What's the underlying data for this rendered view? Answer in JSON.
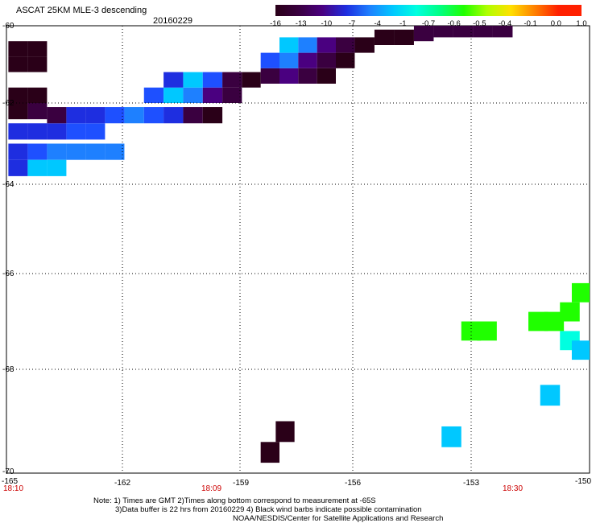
{
  "header": {
    "title": "ASCAT 25KM MLE-3 descending",
    "date": "20160229"
  },
  "colorbar": {
    "labels": [
      "-16",
      "-13",
      "-10",
      "-7",
      "-4",
      "-1",
      "-0.7",
      "-0.6",
      "-0.5",
      "-0.4",
      "-0.1",
      "0.0",
      "1.0"
    ],
    "colors": [
      "#2a0018",
      "#3a0040",
      "#4a0080",
      "#1e2ee0",
      "#1e80ff",
      "#00c8ff",
      "#00ffe0",
      "#00ff80",
      "#20ff00",
      "#b0ff00",
      "#ffe000",
      "#ff8000",
      "#ff2000"
    ]
  },
  "axes": {
    "lat_labels": [
      "-60",
      "-62",
      "-64",
      "-66",
      "-68",
      "-70"
    ],
    "lon_labels": [
      "-165",
      "-162",
      "-159",
      "-156",
      "-153",
      "-150"
    ],
    "time_labels": [
      "18:10",
      "18:09",
      "18:30"
    ]
  },
  "notes": {
    "line1": "Note: 1) Times are GMT 2)Times along bottom correspond to measurement at -65S",
    "line2": "3)Data buffer is 22 hrs from 20160229 4) Black wind barbs indicate possible contamination",
    "line3": "NOAA/NESDIS/Center for Satellite Applications and Research"
  },
  "map_data": {
    "type": "swath-grid",
    "lon_range": [
      -165,
      -150
    ],
    "lat_range": [
      -70,
      -60
    ],
    "cells": [
      [
        -164.7,
        -60.6,
        "#2a0018"
      ],
      [
        -164.2,
        -60.6,
        "#2a0018"
      ],
      [
        -164.7,
        -61.0,
        "#2a0018"
      ],
      [
        -164.2,
        -61.0,
        "#2a0018"
      ],
      [
        -164.7,
        -61.8,
        "#2a0018"
      ],
      [
        -164.2,
        -61.8,
        "#2a0018"
      ],
      [
        -164.7,
        -62.2,
        "#2a0018"
      ],
      [
        -164.2,
        -62.2,
        "#3a0040"
      ],
      [
        -164.7,
        -62.7,
        "#1e2ee0"
      ],
      [
        -164.2,
        -62.7,
        "#1e2ee0"
      ],
      [
        -163.7,
        -62.7,
        "#1e2ee0"
      ],
      [
        -163.2,
        -62.7,
        "#1e50ff"
      ],
      [
        -162.7,
        -62.7,
        "#1e50ff"
      ],
      [
        -164.7,
        -63.2,
        "#1e2ee0"
      ],
      [
        -164.2,
        -63.2,
        "#1e50ff"
      ],
      [
        -163.7,
        -63.2,
        "#1e80ff"
      ],
      [
        -163.2,
        -63.2,
        "#1e80ff"
      ],
      [
        -162.7,
        -63.2,
        "#1e80ff"
      ],
      [
        -162.2,
        -63.2,
        "#1e80ff"
      ],
      [
        -164.7,
        -63.6,
        "#1e2ee0"
      ],
      [
        -164.2,
        -63.6,
        "#00c8ff"
      ],
      [
        -163.7,
        -63.6,
        "#00c8ff"
      ],
      [
        -163.7,
        -62.3,
        "#3a0040"
      ],
      [
        -163.2,
        -62.3,
        "#1e2ee0"
      ],
      [
        -162.7,
        -62.3,
        "#1e2ee0"
      ],
      [
        -162.2,
        -62.3,
        "#1e50ff"
      ],
      [
        -161.7,
        -62.3,
        "#1e80ff"
      ],
      [
        -161.2,
        -62.3,
        "#1e50ff"
      ],
      [
        -160.7,
        -62.3,
        "#1e2ee0"
      ],
      [
        -160.2,
        -62.3,
        "#3a0040"
      ],
      [
        -159.7,
        -62.3,
        "#2a0018"
      ],
      [
        -161.2,
        -61.8,
        "#1e50ff"
      ],
      [
        -160.7,
        -61.8,
        "#00c8ff"
      ],
      [
        -160.2,
        -61.8,
        "#1e80ff"
      ],
      [
        -159.7,
        -61.8,
        "#4a0080"
      ],
      [
        -159.2,
        -61.8,
        "#3a0040"
      ],
      [
        -160.7,
        -61.4,
        "#1e2ee0"
      ],
      [
        -160.2,
        -61.4,
        "#00c8ff"
      ],
      [
        -159.7,
        -61.4,
        "#1e50ff"
      ],
      [
        -159.2,
        -61.4,
        "#3a0040"
      ],
      [
        -158.7,
        -61.4,
        "#2a0018"
      ],
      [
        -158.2,
        -61.3,
        "#3a0040"
      ],
      [
        -157.7,
        -61.3,
        "#4a0080"
      ],
      [
        -157.2,
        -61.3,
        "#3a0040"
      ],
      [
        -156.7,
        -61.3,
        "#2a0018"
      ],
      [
        -158.2,
        -60.9,
        "#1e50ff"
      ],
      [
        -157.7,
        -60.9,
        "#1e80ff"
      ],
      [
        -157.2,
        -60.9,
        "#4a0080"
      ],
      [
        -156.7,
        -60.9,
        "#3a0040"
      ],
      [
        -156.2,
        -60.9,
        "#2a0018"
      ],
      [
        -157.7,
        -60.5,
        "#00c8ff"
      ],
      [
        -157.2,
        -60.5,
        "#1e80ff"
      ],
      [
        -156.7,
        -60.5,
        "#4a0080"
      ],
      [
        -156.2,
        -60.5,
        "#3a0040"
      ],
      [
        -155.7,
        -60.5,
        "#2a0018"
      ],
      [
        -155.2,
        -60.3,
        "#2a0018"
      ],
      [
        -154.7,
        -60.3,
        "#2a0018"
      ],
      [
        -154.2,
        -60.2,
        "#3a0040"
      ],
      [
        -153.7,
        -60.1,
        "#3a0040"
      ],
      [
        -153.2,
        -60.1,
        "#3a0040"
      ],
      [
        -152.7,
        -60.1,
        "#3a0040"
      ],
      [
        -152.2,
        -60.1,
        "#3a0040"
      ],
      [
        -153.0,
        -67.2,
        "#20ff00"
      ],
      [
        -152.6,
        -67.2,
        "#20ff00"
      ],
      [
        -151.3,
        -67.0,
        "#20ff00"
      ],
      [
        -150.9,
        -67.0,
        "#20ff00"
      ],
      [
        -150.5,
        -66.8,
        "#20ff00"
      ],
      [
        -150.2,
        -66.4,
        "#20ff00"
      ],
      [
        -150.5,
        -67.4,
        "#00ffe0"
      ],
      [
        -150.2,
        -67.6,
        "#00c8ff"
      ],
      [
        -151.0,
        -68.5,
        "#00c8ff"
      ],
      [
        -153.5,
        -69.3,
        "#00c8ff"
      ],
      [
        -157.8,
        -69.2,
        "#2a0018"
      ],
      [
        -158.2,
        -69.6,
        "#2a0018"
      ]
    ]
  }
}
